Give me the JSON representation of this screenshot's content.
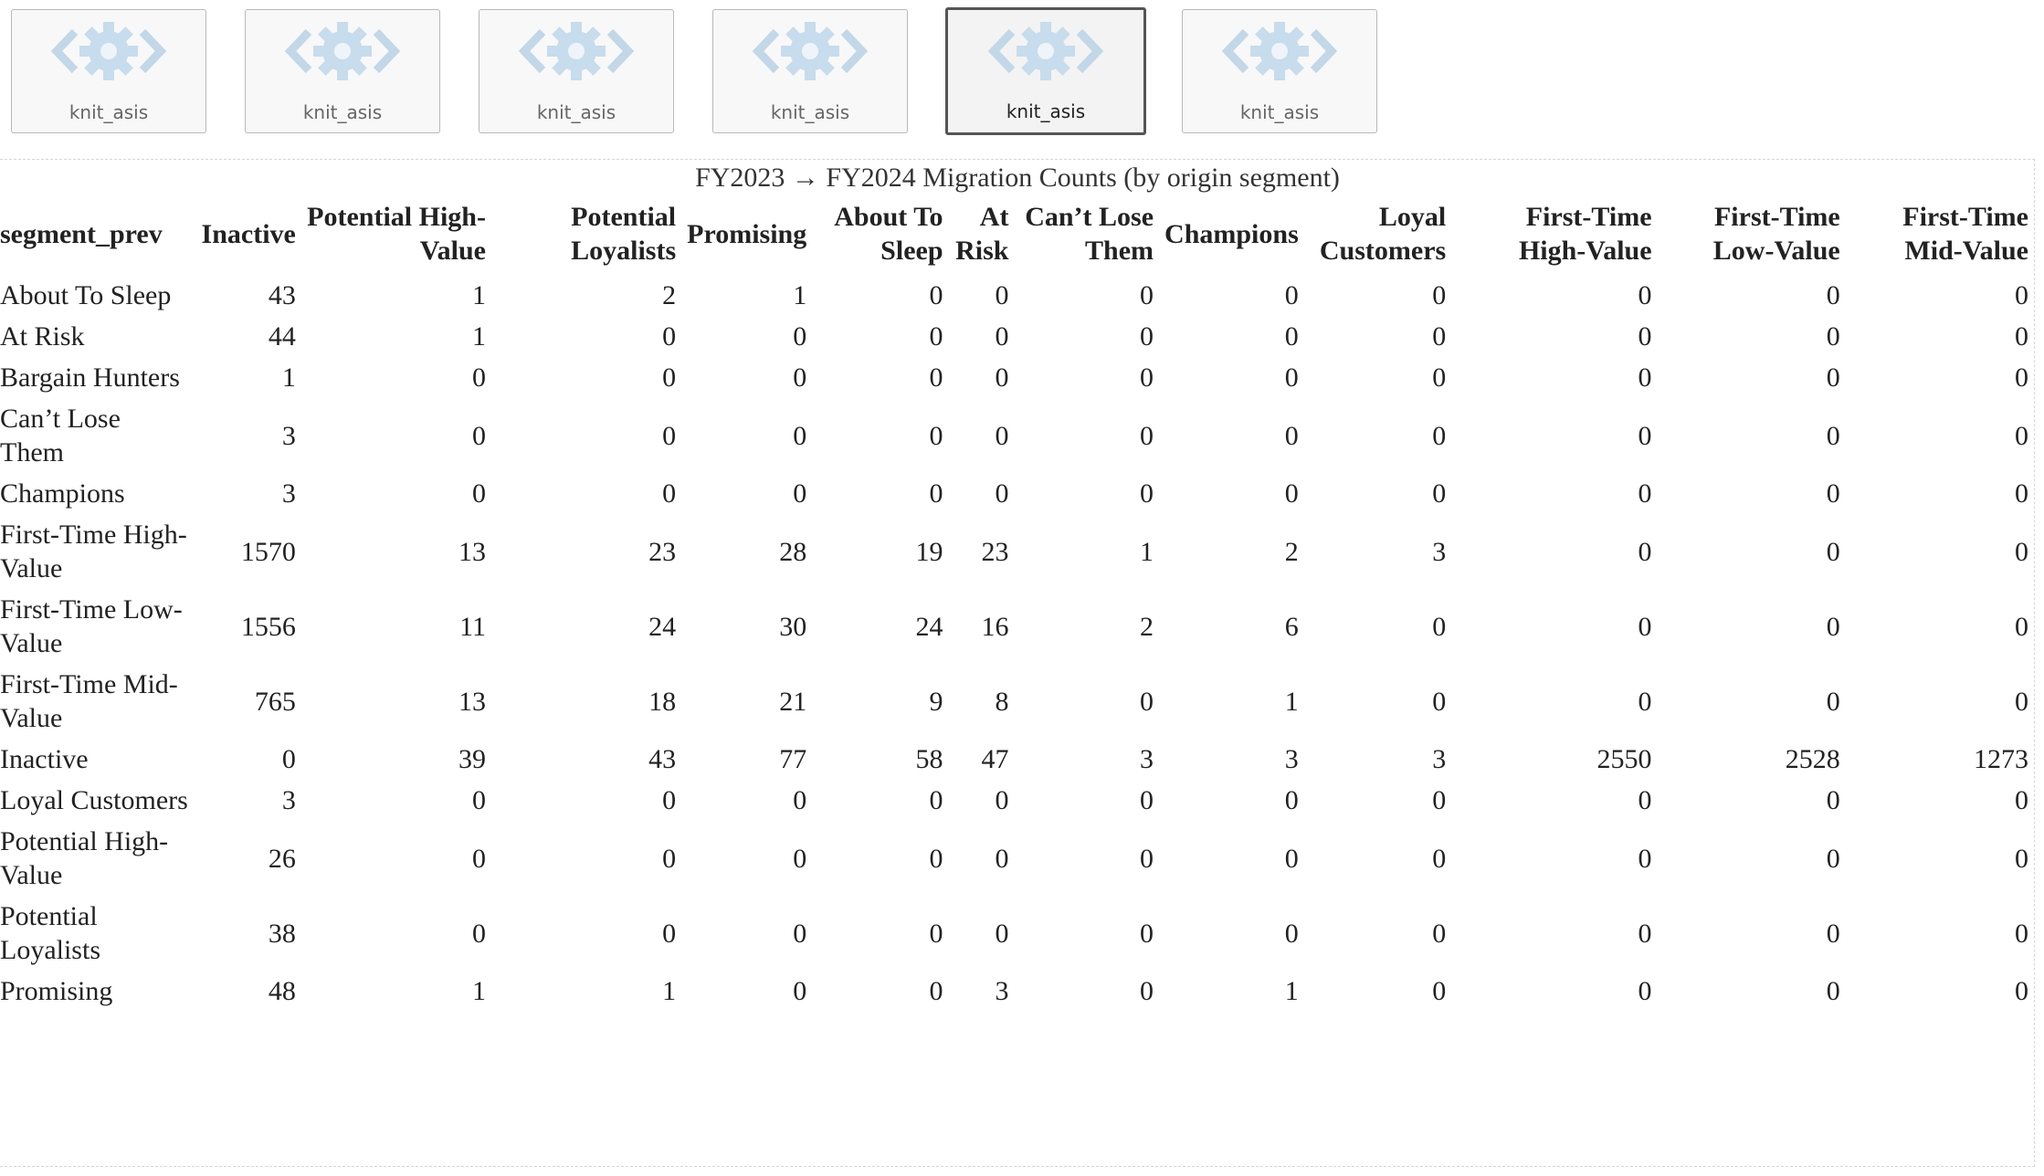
{
  "tabs": [
    {
      "label": "knit_asis",
      "active": false
    },
    {
      "label": "knit_asis",
      "active": false
    },
    {
      "label": "knit_asis",
      "active": false
    },
    {
      "label": "knit_asis",
      "active": false
    },
    {
      "label": "knit_asis",
      "active": true
    },
    {
      "label": "knit_asis",
      "active": false
    }
  ],
  "icon": "code-gear-icon",
  "table": {
    "caption": "FY2023 → FY2024 Migration Counts (by origin segment)",
    "headers": [
      "segment_prev",
      "Inactive",
      "Potential High-Value",
      "Potential Loyalists",
      "Promising",
      "About To Sleep",
      "At Risk",
      "Can’t Lose Them",
      "Champions",
      "Loyal Customers",
      "First-Time High-Value",
      "First-Time Low-Value",
      "First-Time Mid-Value"
    ],
    "rows": [
      [
        "About To Sleep",
        "43",
        "1",
        "2",
        "1",
        "0",
        "0",
        "0",
        "0",
        "0",
        "0",
        "0",
        "0"
      ],
      [
        "At Risk",
        "44",
        "1",
        "0",
        "0",
        "0",
        "0",
        "0",
        "0",
        "0",
        "0",
        "0",
        "0"
      ],
      [
        "Bargain Hunters",
        "1",
        "0",
        "0",
        "0",
        "0",
        "0",
        "0",
        "0",
        "0",
        "0",
        "0",
        "0"
      ],
      [
        "Can’t Lose Them",
        "3",
        "0",
        "0",
        "0",
        "0",
        "0",
        "0",
        "0",
        "0",
        "0",
        "0",
        "0"
      ],
      [
        "Champions",
        "3",
        "0",
        "0",
        "0",
        "0",
        "0",
        "0",
        "0",
        "0",
        "0",
        "0",
        "0"
      ],
      [
        "First-Time High-Value",
        "1570",
        "13",
        "23",
        "28",
        "19",
        "23",
        "1",
        "2",
        "3",
        "0",
        "0",
        "0"
      ],
      [
        "First-Time Low-Value",
        "1556",
        "11",
        "24",
        "30",
        "24",
        "16",
        "2",
        "6",
        "0",
        "0",
        "0",
        "0"
      ],
      [
        "First-Time Mid-Value",
        "765",
        "13",
        "18",
        "21",
        "9",
        "8",
        "0",
        "1",
        "0",
        "0",
        "0",
        "0"
      ],
      [
        "Inactive",
        "0",
        "39",
        "43",
        "77",
        "58",
        "47",
        "3",
        "3",
        "3",
        "2550",
        "2528",
        "1273"
      ],
      [
        "Loyal Customers",
        "3",
        "0",
        "0",
        "0",
        "0",
        "0",
        "0",
        "0",
        "0",
        "0",
        "0",
        "0"
      ],
      [
        "Potential High-Value",
        "26",
        "0",
        "0",
        "0",
        "0",
        "0",
        "0",
        "0",
        "0",
        "0",
        "0",
        "0"
      ],
      [
        "Potential Loyalists",
        "38",
        "0",
        "0",
        "0",
        "0",
        "0",
        "0",
        "0",
        "0",
        "0",
        "0",
        "0"
      ],
      [
        "Promising",
        "48",
        "1",
        "1",
        "0",
        "0",
        "3",
        "0",
        "1",
        "0",
        "0",
        "0",
        "0"
      ]
    ]
  }
}
